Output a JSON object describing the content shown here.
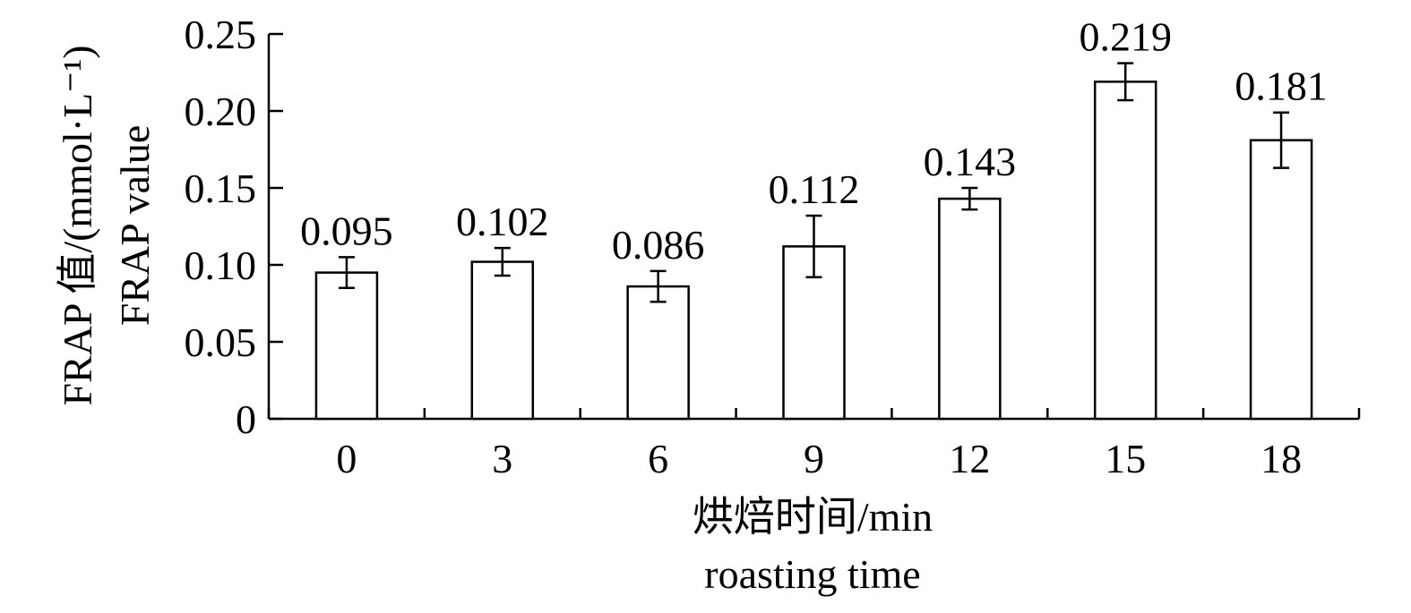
{
  "chart_data": {
    "type": "bar",
    "categories": [
      "0",
      "3",
      "6",
      "9",
      "12",
      "15",
      "18"
    ],
    "values": [
      0.095,
      0.102,
      0.086,
      0.112,
      0.143,
      0.219,
      0.181
    ],
    "error_bars": [
      0.01,
      0.009,
      0.01,
      0.02,
      0.007,
      0.012,
      0.018
    ],
    "value_labels": [
      "0.095",
      "0.102",
      "0.086",
      "0.112",
      "0.143",
      "0.219",
      "0.181"
    ],
    "yticks": [
      0,
      0.05,
      0.1,
      0.15,
      0.2,
      0.25
    ],
    "ytick_labels": [
      "0",
      "0.05",
      "0.10",
      "0.15",
      "0.20",
      "0.25"
    ],
    "ylim": [
      0,
      0.25
    ],
    "xlabel_lines": [
      "烘焙时间/min",
      "roasting time"
    ],
    "ylabel_lines": [
      "FRAP 值/(mmol·L⁻¹)",
      "FRAP value"
    ],
    "grid": false,
    "legend": "none",
    "colors": {
      "bar_fill": "#ffffff",
      "bar_stroke": "#000000",
      "axis": "#000000"
    }
  }
}
